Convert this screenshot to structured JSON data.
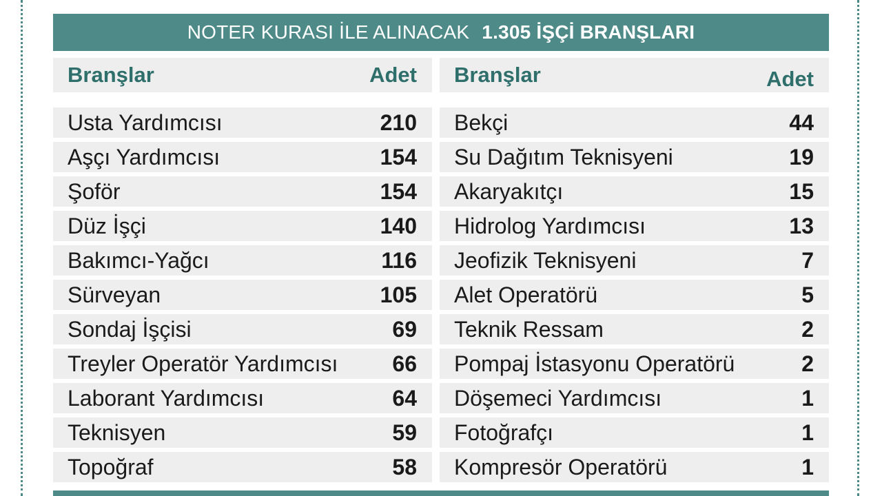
{
  "banner": {
    "title_light": "NOTER KURASI İLE ALINACAK",
    "title_bold": "1.305 İŞÇİ BRANŞLARI"
  },
  "columns": {
    "left": {
      "header": {
        "branch": "Branşlar",
        "count": "Adet"
      },
      "rows": [
        {
          "name": "Usta Yardımcısı",
          "count": "210"
        },
        {
          "name": "Aşçı Yardımcısı",
          "count": "154"
        },
        {
          "name": "Şoför",
          "count": "154"
        },
        {
          "name": "Düz İşçi",
          "count": "140"
        },
        {
          "name": "Bakımcı-Yağcı",
          "count": "116"
        },
        {
          "name": "Sürveyan",
          "count": "105"
        },
        {
          "name": "Sondaj İşçisi",
          "count": "69"
        },
        {
          "name": "Treyler Operatör Yardımcısı",
          "count": "66"
        },
        {
          "name": "Laborant Yardımcısı",
          "count": "64"
        },
        {
          "name": "Teknisyen",
          "count": "59"
        },
        {
          "name": "Topoğraf",
          "count": "58"
        }
      ]
    },
    "right": {
      "header": {
        "branch": "Branşlar",
        "count": "Adet"
      },
      "rows": [
        {
          "name": "Bekçi",
          "count": "44"
        },
        {
          "name": "Su Dağıtım Teknisyeni",
          "count": "19"
        },
        {
          "name": "Akaryakıtçı",
          "count": "15"
        },
        {
          "name": "Hidrolog Yardımcısı",
          "count": "13"
        },
        {
          "name": "Jeofizik Teknisyeni",
          "count": "7"
        },
        {
          "name": "Alet Operatörü",
          "count": "5"
        },
        {
          "name": "Teknik Ressam",
          "count": "2"
        },
        {
          "name": "Pompaj İstasyonu Operatörü",
          "count": "2"
        },
        {
          "name": "Döşemeci Yardımcısı",
          "count": "1"
        },
        {
          "name": "Fotoğrafçı",
          "count": "1"
        },
        {
          "name": "Kompresör Operatörü",
          "count": "1"
        }
      ]
    }
  },
  "colors": {
    "banner_bg": "#4e8b88",
    "header_text": "#2f6f6b",
    "row_bg": "#eeeeee",
    "border_dots": "#4a8a86"
  }
}
